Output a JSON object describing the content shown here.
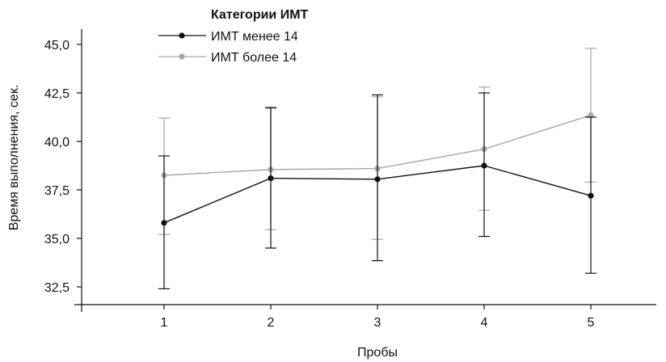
{
  "chart_data": {
    "type": "line",
    "xlabel": "Пробы",
    "ylabel": "Время выполнения, сек.",
    "categories": [
      "1",
      "2",
      "3",
      "4",
      "5"
    ],
    "ylim": [
      31.5,
      46.0
    ],
    "yticks": [
      "32,5",
      "35,0",
      "37,5",
      "40,0",
      "42,5",
      "45,0"
    ],
    "ytick_values": [
      32.5,
      35.0,
      37.5,
      40.0,
      42.5,
      45.0
    ],
    "grid": false,
    "legend": {
      "title": "Категории ИМТ",
      "placement": "top-left"
    },
    "series": [
      {
        "name": "ИМТ менее 14",
        "color": "#111111",
        "values": [
          35.8,
          38.1,
          38.05,
          38.75,
          37.2
        ],
        "error_low": [
          32.4,
          34.5,
          33.85,
          35.1,
          33.2
        ],
        "error_high": [
          39.25,
          41.75,
          42.4,
          42.5,
          41.25
        ]
      },
      {
        "name": "ИМТ более 14",
        "color": "#a6a6a6",
        "values": [
          38.25,
          38.55,
          38.6,
          39.6,
          41.35
        ],
        "error_low": [
          35.2,
          35.45,
          34.95,
          36.45,
          37.9
        ],
        "error_high": [
          41.2,
          41.7,
          42.3,
          42.8,
          44.8
        ]
      }
    ]
  }
}
